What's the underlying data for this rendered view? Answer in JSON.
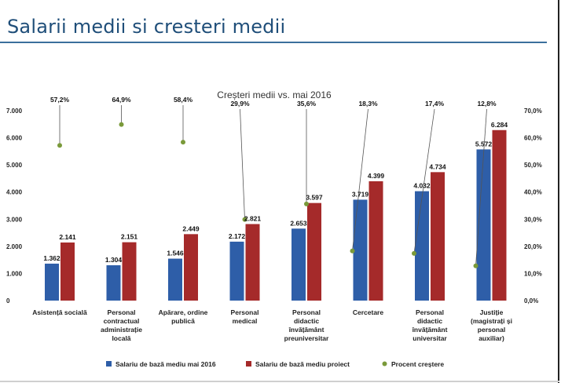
{
  "page": {
    "title": "Salarii medii si cresteri medii"
  },
  "chart_data": {
    "type": "bar",
    "title": "Creșteri medii vs. mai 2016",
    "categories": [
      [
        "Asistență socială"
      ],
      [
        "Personal",
        "contractual",
        "administrație",
        "locală"
      ],
      [
        "Apărare, ordine",
        "publică"
      ],
      [
        "Personal",
        "medical"
      ],
      [
        "Personal",
        "didactic",
        "învățământ",
        "preuniversitar"
      ],
      [
        "Cercetare"
      ],
      [
        "Personal",
        "didactic",
        "învățământ",
        "universitar"
      ],
      [
        "Justiție",
        "(magistrați și",
        "personal",
        "auxiliar)"
      ]
    ],
    "series": [
      {
        "name": "Salariu de bază mediu mai 2016",
        "color": "#2e5ea8",
        "axis": "left",
        "values": [
          1362,
          1304,
          1546,
          2172,
          2653,
          3719,
          4032,
          5572
        ],
        "labels": [
          "1.362",
          "1.304",
          "1.546",
          "2.172",
          "2.653",
          "3.719",
          "4.032",
          "5.572"
        ]
      },
      {
        "name": "Salariu de bază mediu proiect",
        "color": "#a52a2a",
        "axis": "left",
        "values": [
          2141,
          2151,
          2449,
          2821,
          3597,
          4399,
          4734,
          6284
        ],
        "labels": [
          "2.141",
          "2.151",
          "2.449",
          "2.821",
          "3.597",
          "4.399",
          "4.734",
          "6.284"
        ]
      },
      {
        "name": "Procent creștere",
        "color": "#7a9a3a",
        "axis": "right",
        "type": "scatter",
        "values": [
          57.2,
          64.9,
          58.4,
          29.9,
          35.6,
          18.3,
          17.4,
          12.8
        ],
        "labels": [
          "57,2%",
          "64,9%",
          "58,4%",
          "29,9%",
          "35,6%",
          "18,3%",
          "17,4%",
          "12,8%"
        ]
      }
    ],
    "left_axis": {
      "ylim": [
        0,
        7000
      ],
      "ticks": [
        "0",
        "1.000",
        "2.000",
        "3.000",
        "4.000",
        "5.000",
        "6.000",
        "7.000"
      ]
    },
    "right_axis": {
      "ylim": [
        0,
        70
      ],
      "ticks": [
        "0,0%",
        "10,0%",
        "20,0%",
        "30,0%",
        "40,0%",
        "50,0%",
        "60,0%",
        "70,0%"
      ]
    },
    "grid": false,
    "legend": "bottom"
  }
}
